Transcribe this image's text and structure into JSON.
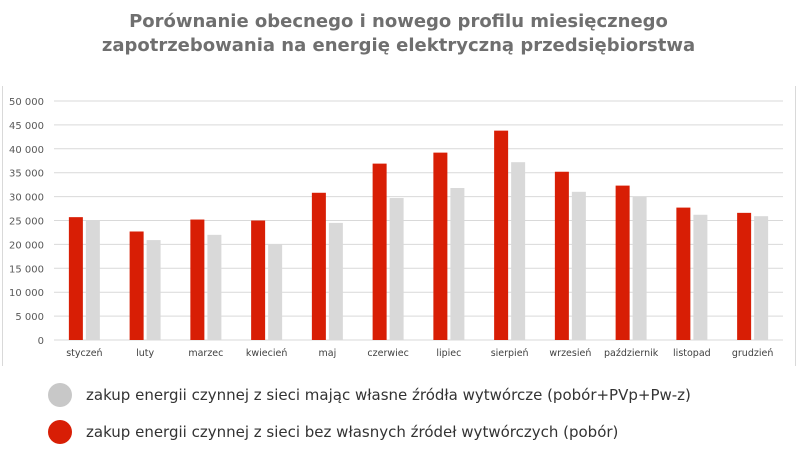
{
  "chart_data": {
    "type": "bar",
    "title_line1": "Porównanie obecnego i nowego profilu miesięcznego",
    "title_line2": "zapotrzebowania na energię elektryczną przedsiębiorstwa",
    "xlabel": "",
    "ylabel": "",
    "ylim": [
      0,
      50000
    ],
    "yticks": [
      "0",
      "5 000",
      "10 000",
      "15 000",
      "20 000",
      "25 000",
      "30 000",
      "35 000",
      "40 000",
      "45 000",
      "50 000"
    ],
    "grid": true,
    "legend_position": "bottom",
    "categories": [
      "styczeń",
      "luty",
      "marzec",
      "kwiecień",
      "maj",
      "czerwiec",
      "lipiec",
      "sierpień",
      "wrzesień",
      "październik",
      "listopad",
      "grudzień"
    ],
    "series": [
      {
        "name": "zakup energii czynnej z sieci bez własnych źródeł wytwórczych (pobór)",
        "color": "#d81e05",
        "values": [
          25700,
          22700,
          25200,
          25000,
          30800,
          36900,
          39200,
          43800,
          35200,
          32300,
          27700,
          26600
        ]
      },
      {
        "name": "zakup energii czynnej z sieci mając własne źródła wytwórcze (pobór+PVp+Pw-z)",
        "color": "#d9d9d9",
        "values": [
          25100,
          20900,
          22000,
          20000,
          24500,
          29700,
          31800,
          37200,
          31000,
          30000,
          26200,
          25900
        ]
      }
    ]
  }
}
